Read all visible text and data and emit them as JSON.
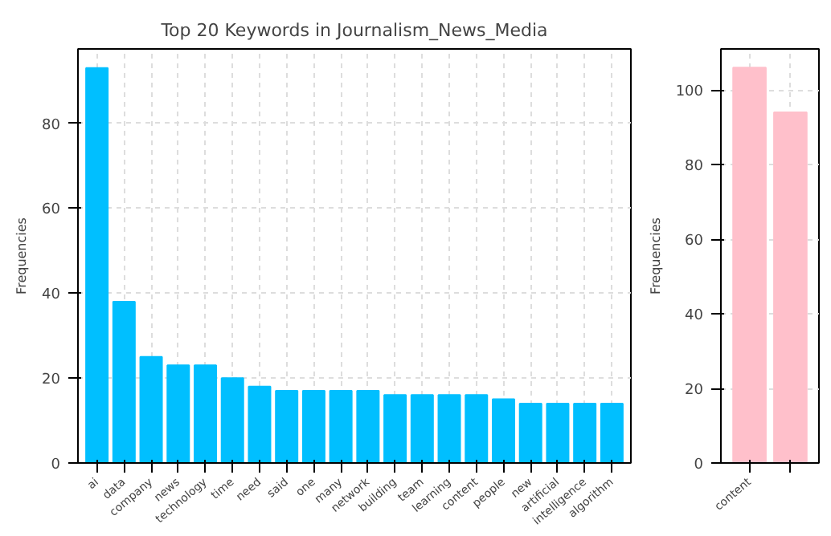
{
  "chart_data": [
    {
      "type": "bar",
      "title": "Top 20 Keywords in Journalism_News_Media",
      "ylabel": "Frequencies",
      "categories": [
        "ai",
        "data",
        "company",
        "news",
        "technology",
        "time",
        "need",
        "said",
        "one",
        "many",
        "network",
        "building",
        "team",
        "learning",
        "content",
        "people",
        "new",
        "artificial",
        "intelligence",
        "algorithm"
      ],
      "values": [
        93,
        38,
        25,
        23,
        23,
        20,
        18,
        17,
        17,
        17,
        17,
        16,
        16,
        16,
        16,
        15,
        14,
        14,
        14,
        14
      ],
      "color": "#00bfff",
      "ylim": [
        0,
        97.5
      ],
      "yticks": [
        0,
        20,
        40,
        60,
        80
      ],
      "grid": true
    },
    {
      "type": "bar",
      "ylabel": "Frequencies",
      "categories": [
        "content",
        null
      ],
      "values": [
        106,
        94
      ],
      "color": "#ffc0cb",
      "ylim": [
        0,
        111
      ],
      "yticks": [
        0,
        20,
        40,
        60,
        80,
        100
      ],
      "grid": true
    }
  ]
}
